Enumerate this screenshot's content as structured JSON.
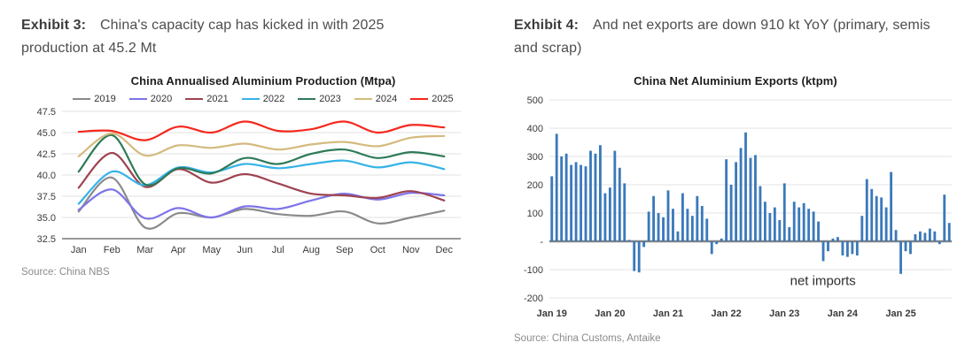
{
  "left": {
    "exhibit_label": "Exhibit 3:",
    "exhibit_text": "China's capacity cap has kicked in with 2025 production at 45.2 Mt",
    "source": "Source: China NBS"
  },
  "right": {
    "exhibit_label": "Exhibit 4:",
    "exhibit_text": "And net exports are down 910 kt YoY (primary, semis and scrap)",
    "source": "Source: China Customs, Antaike"
  },
  "chart_data": [
    {
      "type": "line",
      "title": "China Annualised Aluminium Production (Mtpa)",
      "x_labels": [
        "Jan",
        "Feb",
        "Mar",
        "Apr",
        "May",
        "Jun",
        "Jul",
        "Aug",
        "Sep",
        "Oct",
        "Nov",
        "Dec"
      ],
      "ylim": [
        32.5,
        47.5
      ],
      "ytick_step": 2.5,
      "grid": true,
      "legend_position": "top",
      "series": [
        {
          "name": "2019",
          "color": "#8a8a8a",
          "values": [
            35.7,
            39.7,
            33.8,
            35.5,
            35.0,
            36.0,
            35.4,
            35.2,
            35.7,
            34.3,
            35.0,
            35.8
          ]
        },
        {
          "name": "2020",
          "color": "#7d74e8",
          "values": [
            35.9,
            38.3,
            34.9,
            36.1,
            35.0,
            36.3,
            36.0,
            37.0,
            37.8,
            37.1,
            37.9,
            37.6
          ]
        },
        {
          "name": "2021",
          "color": "#9e4350",
          "values": [
            38.5,
            42.6,
            38.6,
            40.7,
            39.1,
            40.1,
            39.0,
            37.8,
            37.6,
            37.3,
            38.1,
            37.0
          ]
        },
        {
          "name": "2022",
          "color": "#35b3e8",
          "values": [
            36.6,
            40.4,
            38.8,
            40.9,
            40.3,
            41.3,
            40.8,
            41.3,
            41.7,
            40.9,
            41.5,
            40.7
          ]
        },
        {
          "name": "2023",
          "color": "#2e7a58",
          "values": [
            40.4,
            44.7,
            38.9,
            40.8,
            40.2,
            42.0,
            41.3,
            42.5,
            43.0,
            42.0,
            42.7,
            42.2
          ]
        },
        {
          "name": "2024",
          "color": "#d4ba7e",
          "values": [
            42.2,
            44.9,
            42.3,
            43.5,
            43.2,
            43.7,
            43.0,
            43.6,
            43.9,
            43.4,
            44.4,
            44.6
          ]
        },
        {
          "name": "2025",
          "color": "#f5281c",
          "values": [
            45.1,
            45.2,
            44.1,
            45.7,
            45.0,
            46.3,
            45.2,
            45.4,
            46.3,
            45.0,
            45.9,
            45.6
          ]
        }
      ]
    },
    {
      "type": "bar",
      "title": "China Net Aluminium Exports (ktpm)",
      "bar_color": "#3b79bb",
      "ylim": [
        -200,
        500
      ],
      "ytick_step": 100,
      "zero_tick_label": "-",
      "grid": true,
      "annotation": "net imports",
      "x_tick_labels": [
        "Jan 19",
        "Jan 20",
        "Jan 21",
        "Jan 22",
        "Jan 23",
        "Jan 24",
        "Jan 25"
      ],
      "series": [
        {
          "name": "2019",
          "values": [
            230,
            380,
            300,
            310,
            270,
            280,
            270,
            265,
            320,
            310,
            340,
            170
          ]
        },
        {
          "name": "2020",
          "values": [
            190,
            320,
            260,
            205,
            5,
            -105,
            -110,
            -20,
            105,
            160,
            100,
            85
          ]
        },
        {
          "name": "2021",
          "values": [
            180,
            115,
            35,
            170,
            115,
            90,
            160,
            125,
            80,
            -45,
            -10,
            10
          ]
        },
        {
          "name": "2022",
          "values": [
            290,
            200,
            280,
            330,
            385,
            295,
            305,
            195,
            140,
            100,
            120,
            75
          ]
        },
        {
          "name": "2023",
          "values": [
            205,
            50,
            140,
            120,
            135,
            115,
            105,
            70,
            -70,
            -35,
            10,
            15
          ]
        },
        {
          "name": "2024",
          "values": [
            -50,
            -55,
            -45,
            -50,
            90,
            220,
            185,
            160,
            155,
            120,
            245,
            40
          ]
        },
        {
          "name": "2025",
          "values": [
            -115,
            -35,
            -45,
            25,
            35,
            30,
            45,
            35,
            -10,
            165,
            65
          ]
        }
      ]
    }
  ]
}
